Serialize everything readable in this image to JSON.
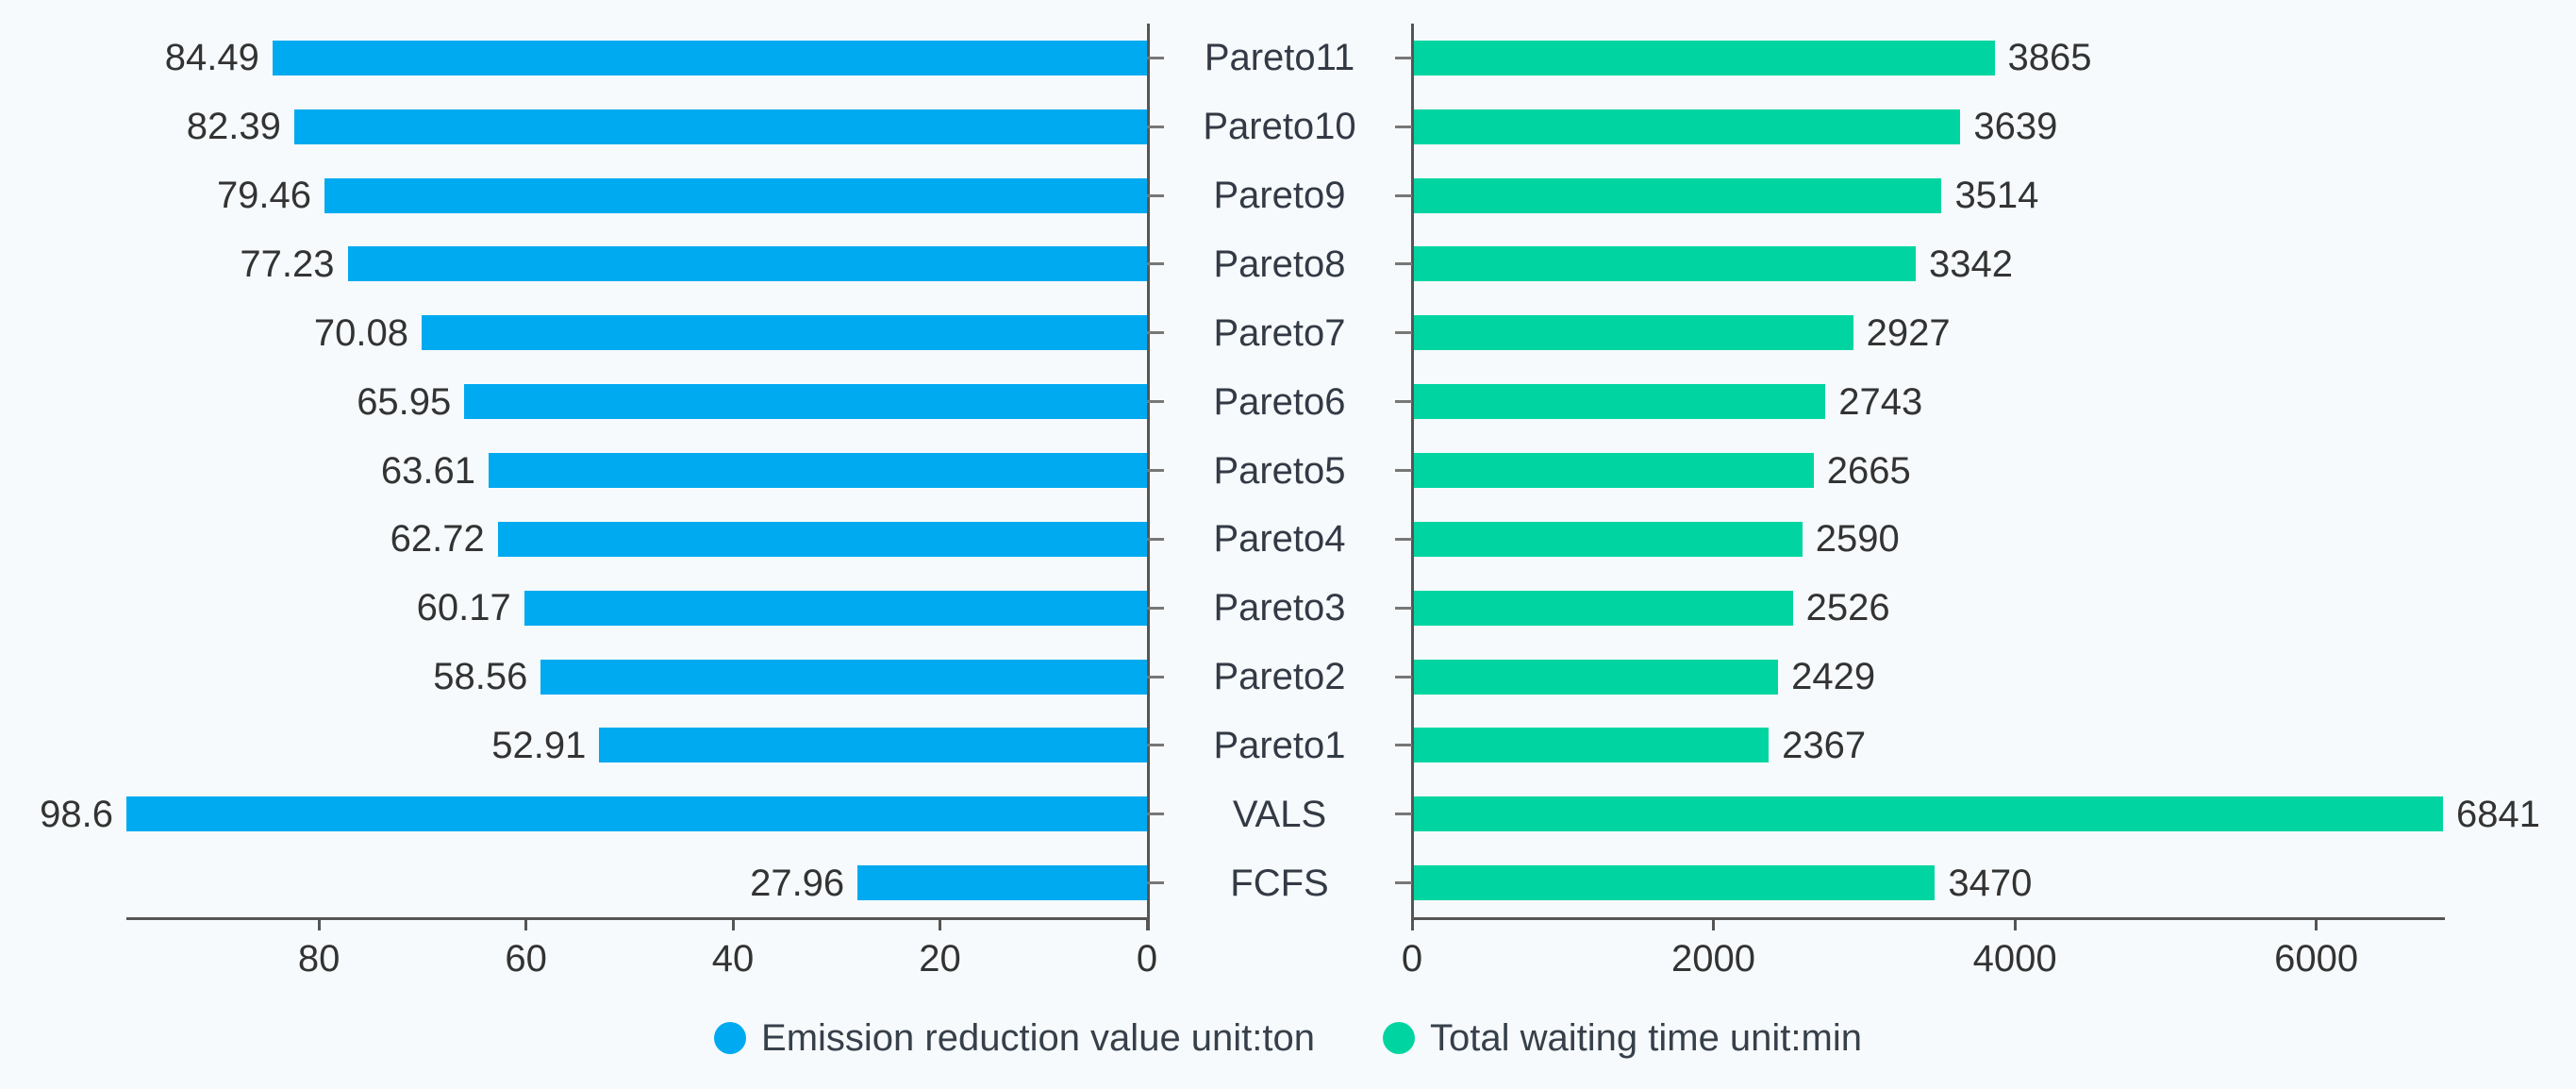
{
  "chart_data": {
    "type": "bar",
    "orientation": "horizontal",
    "layout": "bidirectional-tornado",
    "title": "",
    "categories": [
      "Pareto11",
      "Pareto10",
      "Pareto9",
      "Pareto8",
      "Pareto7",
      "Pareto6",
      "Pareto5",
      "Pareto4",
      "Pareto3",
      "Pareto2",
      "Pareto1",
      "VALS",
      "FCFS"
    ],
    "series": [
      {
        "name": "Emission reduction value unit:ton",
        "side": "left",
        "color": "#00aaf0",
        "values": [
          84.49,
          82.39,
          79.46,
          77.23,
          70.08,
          65.95,
          63.61,
          62.72,
          60.17,
          58.56,
          52.91,
          98.6,
          27.96
        ],
        "axis_ticks": [
          80,
          60,
          40,
          20,
          0
        ],
        "axis_range": [
          0,
          98.6
        ],
        "axis_direction": "reversed (0 at right)"
      },
      {
        "name": "Total waiting time unit:min",
        "side": "right",
        "color": "#00d5a1",
        "values": [
          3865,
          3639,
          3514,
          3342,
          2927,
          2743,
          2665,
          2590,
          2526,
          2429,
          2367,
          6841,
          3470
        ],
        "axis_ticks": [
          0,
          2000,
          4000,
          6000
        ],
        "axis_range": [
          0,
          6841
        ],
        "axis_direction": "normal (0 at left)"
      }
    ],
    "grid": false,
    "legend_position": "bottom-center",
    "value_labels_shown": true
  },
  "legend": {
    "items": [
      {
        "label": "Emission reduction value unit:ton",
        "color": "#00aaf0"
      },
      {
        "label": "Total waiting time unit:min",
        "color": "#00d5a1"
      }
    ]
  },
  "colors": {
    "background": "#f6fafc",
    "axis_line": "#555555",
    "tick_mark": "#777777",
    "text": "#333333",
    "bar_left": "#00aaf0",
    "bar_right": "#00d5a1"
  }
}
